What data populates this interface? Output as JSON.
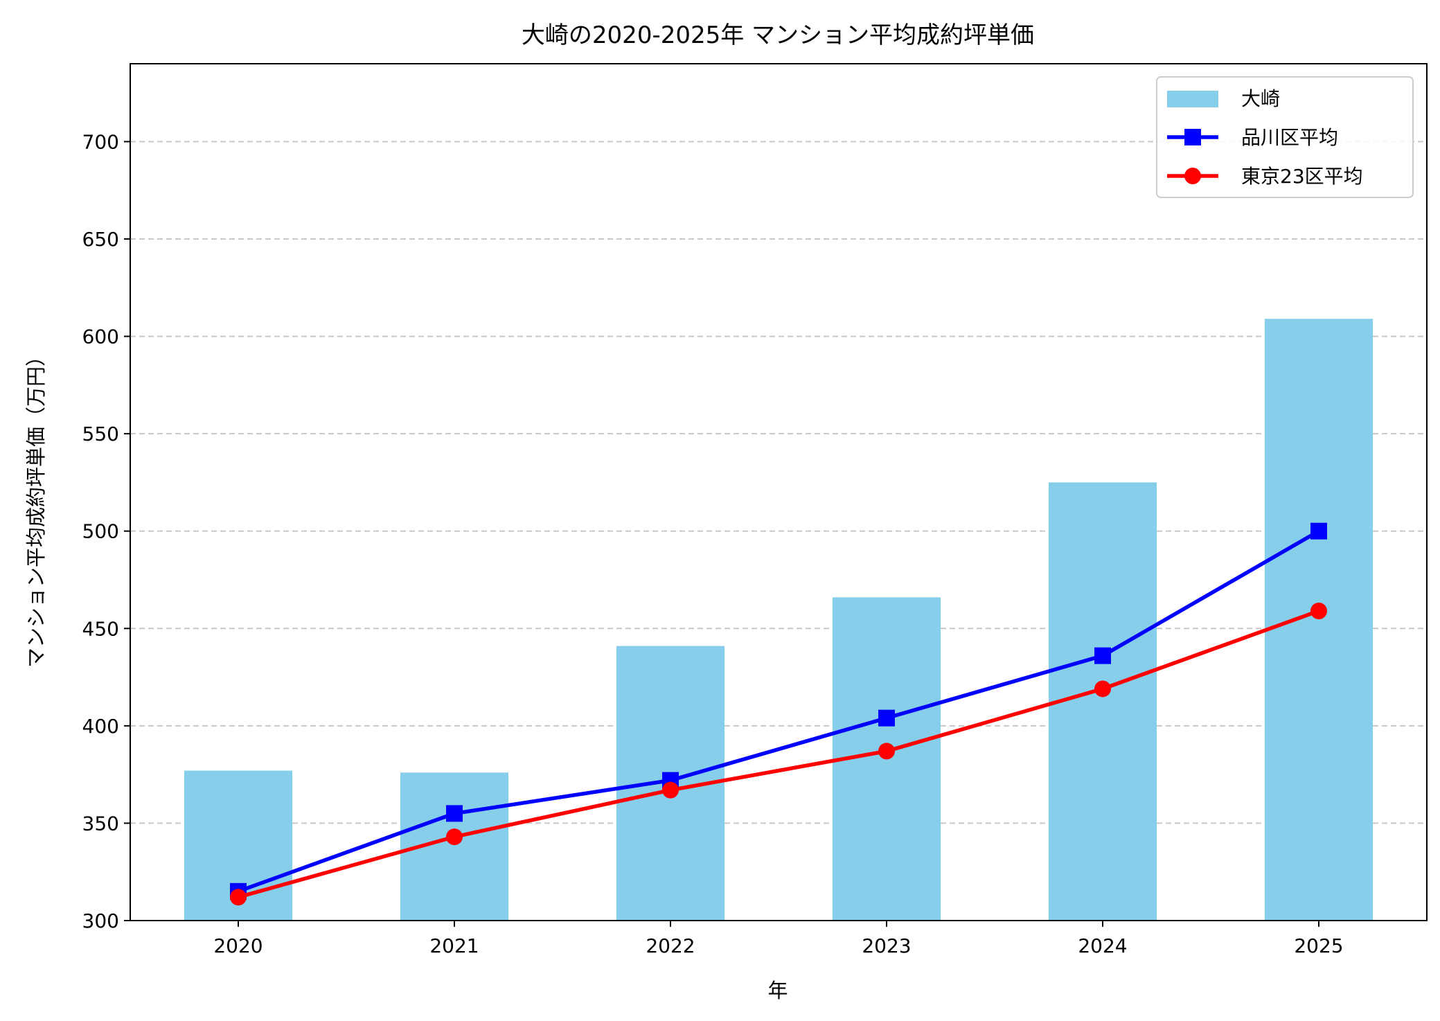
{
  "chart_data": {
    "type": "bar+line",
    "title": "大崎の2020-2025年 マンション平均成約坪単価",
    "xlabel": "年",
    "ylabel": "マンション平均成約坪単価（万円）",
    "categories": [
      "2020",
      "2021",
      "2022",
      "2023",
      "2024",
      "2025"
    ],
    "ylim": [
      300,
      740
    ],
    "yticks": [
      300,
      350,
      400,
      450,
      500,
      550,
      600,
      650,
      700
    ],
    "grid": "y-dashed",
    "legend_position": "top-right",
    "series": [
      {
        "name": "大崎",
        "kind": "bar",
        "color": "#87CEEB",
        "values": [
          377,
          376,
          441,
          466,
          525,
          609
        ]
      },
      {
        "name": "品川区平均",
        "kind": "line",
        "marker": "square",
        "color": "#0000FF",
        "values": [
          315,
          355,
          372,
          404,
          436,
          500
        ]
      },
      {
        "name": "東京23区平均",
        "kind": "line",
        "marker": "circle",
        "color": "#FF0000",
        "values": [
          312,
          343,
          367,
          387,
          419,
          459
        ]
      }
    ]
  }
}
